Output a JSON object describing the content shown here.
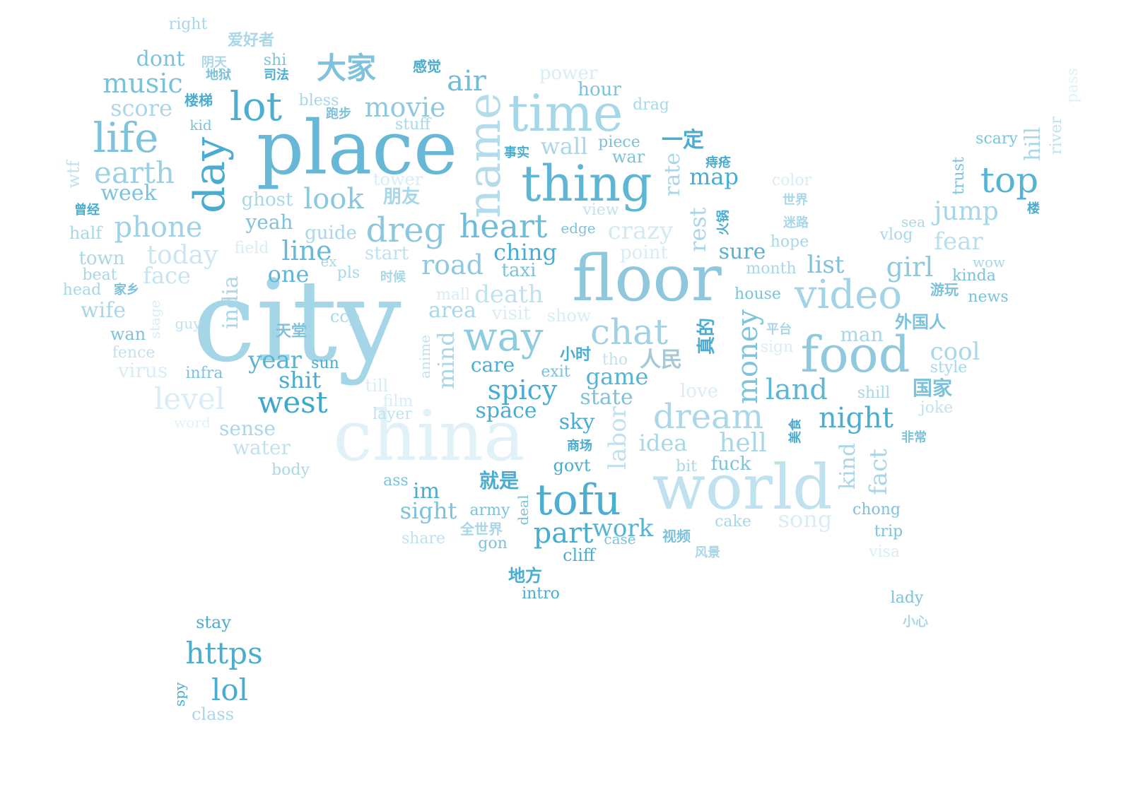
{
  "words": [
    {
      "text": "city",
      "color": "#a5d6e8"
    },
    {
      "text": "place",
      "color": "#66b8d6"
    },
    {
      "text": "floor",
      "color": "#8fc7dc"
    },
    {
      "text": "china",
      "color": "#e0f1f8"
    },
    {
      "text": "world",
      "color": "#c0e2ee"
    },
    {
      "text": "time",
      "color": "#a6d7e8"
    },
    {
      "text": "thing",
      "color": "#5fb6d4"
    },
    {
      "text": "name",
      "color": "#b5dcea"
    },
    {
      "text": "food",
      "color": "#8fc9dd"
    },
    {
      "text": "video",
      "color": "#a3d3e6"
    },
    {
      "text": "tofu",
      "color": "#4caed1"
    },
    {
      "text": "life",
      "color": "#7ec3dc"
    },
    {
      "text": "lot",
      "color": "#4daecf"
    },
    {
      "text": "day",
      "color": "#4aaccf"
    },
    {
      "text": "way",
      "color": "#8ccbe0"
    },
    {
      "text": "chat",
      "color": "#a0d1e4"
    },
    {
      "text": "dream",
      "color": "#a9d8e9"
    },
    {
      "text": "heart",
      "color": "#6fbcd8"
    },
    {
      "text": "dreg",
      "color": "#8bc8de"
    },
    {
      "text": "top",
      "color": "#57b3d3"
    },
    {
      "text": "大家",
      "color": "#7fc2dc"
    },
    {
      "text": "一定",
      "color": "#4aacd0"
    },
    {
      "text": "earth",
      "color": "#9cd0e3"
    },
    {
      "text": "music",
      "color": "#7bc1da"
    },
    {
      "text": "movie",
      "color": "#8ec9de"
    },
    {
      "text": "air",
      "color": "#71bdd8"
    },
    {
      "text": "score",
      "color": "#a9d7e8"
    },
    {
      "text": "phone",
      "color": "#a0d2e5"
    },
    {
      "text": "look",
      "color": "#8bc8dd"
    },
    {
      "text": "today",
      "color": "#cbe6f1"
    },
    {
      "text": "face",
      "color": "#c7e4f0"
    },
    {
      "text": "line",
      "color": "#68b9d6"
    },
    {
      "text": "one",
      "color": "#60b5d4"
    },
    {
      "text": "road",
      "color": "#8ec9de"
    },
    {
      "text": "crazy",
      "color": "#d3eaf3"
    },
    {
      "text": "jump",
      "color": "#a7d6e8"
    },
    {
      "text": "girl",
      "color": "#8ec9de"
    },
    {
      "text": "fear",
      "color": "#b9deec"
    },
    {
      "text": "cool",
      "color": "#a9d7e8"
    },
    {
      "text": "list",
      "color": "#7dc2db"
    },
    {
      "text": "money",
      "color": "#7fc3dc"
    },
    {
      "text": "level",
      "color": "#d8edf5"
    },
    {
      "text": "west",
      "color": "#3ea8cc"
    },
    {
      "text": "year",
      "color": "#59b3d3"
    },
    {
      "text": "shit",
      "color": "#48abcf"
    },
    {
      "text": "spicy",
      "color": "#4aadd0"
    },
    {
      "text": "game",
      "color": "#57b3d3"
    },
    {
      "text": "land",
      "color": "#5fb6d4"
    },
    {
      "text": "night",
      "color": "#4cadd0"
    },
    {
      "text": "hell",
      "color": "#a9d7e8"
    },
    {
      "text": "idea",
      "color": "#a9d7e8"
    },
    {
      "text": "labor",
      "color": "#c0e2ee"
    },
    {
      "text": "part",
      "color": "#4aadd0"
    },
    {
      "text": "work",
      "color": "#57b3d3"
    },
    {
      "text": "sight",
      "color": "#7dc2db"
    },
    {
      "text": "song",
      "color": "#d8edf5"
    },
    {
      "text": "fact",
      "color": "#a9d7e8"
    },
    {
      "text": "kind",
      "color": "#a9d7e8"
    },
    {
      "text": "mind",
      "color": "#a9d7e8"
    },
    {
      "text": "death",
      "color": "#c0e2ee"
    },
    {
      "text": "area",
      "color": "#a9d7e8"
    },
    {
      "text": "india",
      "color": "#a9d7e8"
    },
    {
      "text": "rest",
      "color": "#a9d7e8"
    },
    {
      "text": "rate",
      "color": "#a9d7e8"
    },
    {
      "text": "map",
      "color": "#4aadd0"
    },
    {
      "text": "sure",
      "color": "#57b3d3"
    },
    {
      "text": "wall",
      "color": "#a9d7e8"
    },
    {
      "text": "hour",
      "color": "#7dc2db"
    },
    {
      "text": "power",
      "color": "#d8edf5"
    },
    {
      "text": "wife",
      "color": "#a9d7e8"
    },
    {
      "text": "week",
      "color": "#7dc2db"
    },
    {
      "text": "town",
      "color": "#a9d7e8"
    },
    {
      "text": "half",
      "color": "#a9d7e8"
    },
    {
      "text": "wtf",
      "color": "#c0e2ee"
    },
    {
      "text": "dont",
      "color": "#7dc2db"
    },
    {
      "text": "right",
      "color": "#a9d7e8"
    },
    {
      "text": "shi",
      "color": "#7dc2db"
    },
    {
      "text": "bless",
      "color": "#a9d7e8"
    },
    {
      "text": "kid",
      "color": "#7dc2db"
    },
    {
      "text": "stuff",
      "color": "#a9d7e8"
    },
    {
      "text": "ghost",
      "color": "#a9d7e8"
    },
    {
      "text": "yeah",
      "color": "#7dc2db"
    },
    {
      "text": "guide",
      "color": "#a9d7e8"
    },
    {
      "text": "field",
      "color": "#d8edf5"
    },
    {
      "text": "start",
      "color": "#c0e2ee"
    },
    {
      "text": "tower",
      "color": "#d8edf5"
    },
    {
      "text": "ching",
      "color": "#4aadd0"
    },
    {
      "text": "taxi",
      "color": "#7dc2db"
    },
    {
      "text": "point",
      "color": "#d8edf5"
    },
    {
      "text": "edge",
      "color": "#7dc2db"
    },
    {
      "text": "view",
      "color": "#c0e2ee"
    },
    {
      "text": "piece",
      "color": "#7dc2db"
    },
    {
      "text": "war",
      "color": "#7dc2db"
    },
    {
      "text": "drag",
      "color": "#a9d7e8"
    },
    {
      "text": "color",
      "color": "#d8edf5"
    },
    {
      "text": "scary",
      "color": "#7dc2db"
    },
    {
      "text": "hill",
      "color": "#a9d7e8"
    },
    {
      "text": "river",
      "color": "#c0e2ee"
    },
    {
      "text": "pass",
      "color": "#e0f1f8"
    },
    {
      "text": "trust",
      "color": "#7dc2db"
    },
    {
      "text": "sea",
      "color": "#a9d7e8"
    },
    {
      "text": "vlog",
      "color": "#a9d7e8"
    },
    {
      "text": "hope",
      "color": "#a9d7e8"
    },
    {
      "text": "month",
      "color": "#a9d7e8"
    },
    {
      "text": "house",
      "color": "#7dc2db"
    },
    {
      "text": "wow",
      "color": "#a9d7e8"
    },
    {
      "text": "kinda",
      "color": "#7dc2db"
    },
    {
      "text": "news",
      "color": "#7dc2db"
    },
    {
      "text": "man",
      "color": "#a9d7e8"
    },
    {
      "text": "style",
      "color": "#a9d7e8"
    },
    {
      "text": "sign",
      "color": "#d8edf5"
    },
    {
      "text": "shill",
      "color": "#a9d7e8"
    },
    {
      "text": "joke",
      "color": "#c0e2ee"
    },
    {
      "text": "tho",
      "color": "#c0e2ee"
    },
    {
      "text": "exit",
      "color": "#7dc2db"
    },
    {
      "text": "care",
      "color": "#4aadd0"
    },
    {
      "text": "love",
      "color": "#d8edf5"
    },
    {
      "text": "state",
      "color": "#7dc2db"
    },
    {
      "text": "space",
      "color": "#4aadd0"
    },
    {
      "text": "sky",
      "color": "#4aadd0"
    },
    {
      "text": "govt",
      "color": "#4aadd0"
    },
    {
      "text": "bit",
      "color": "#a9d7e8"
    },
    {
      "text": "fuck",
      "color": "#7dc2db"
    },
    {
      "text": "show",
      "color": "#d8edf5"
    },
    {
      "text": "visit",
      "color": "#d8edf5"
    },
    {
      "text": "mall",
      "color": "#d8edf5"
    },
    {
      "text": "anime",
      "color": "#c0e2ee"
    },
    {
      "text": "till",
      "color": "#d8edf5"
    },
    {
      "text": "film",
      "color": "#d8edf5"
    },
    {
      "text": "layer",
      "color": "#c0e2ee"
    },
    {
      "text": "ccp",
      "color": "#a9d7e8"
    },
    {
      "text": "pls",
      "color": "#a9d7e8"
    },
    {
      "text": "ex",
      "color": "#a9d7e8"
    },
    {
      "text": "sun",
      "color": "#4aadd0"
    },
    {
      "text": "infra",
      "color": "#7dc2db"
    },
    {
      "text": "virus",
      "color": "#d8edf5"
    },
    {
      "text": "fence",
      "color": "#c0e2ee"
    },
    {
      "text": "wan",
      "color": "#7dc2db"
    },
    {
      "text": "stage",
      "color": "#d8edf5"
    },
    {
      "text": "guy",
      "color": "#c0e2ee"
    },
    {
      "text": "beat",
      "color": "#a9d7e8"
    },
    {
      "text": "head",
      "color": "#a9d7e8"
    },
    {
      "text": "word",
      "color": "#e0f1f8"
    },
    {
      "text": "sense",
      "color": "#a9d7e8"
    },
    {
      "text": "water",
      "color": "#c0e2ee"
    },
    {
      "text": "body",
      "color": "#a9d7e8"
    },
    {
      "text": "ass",
      "color": "#7dc2db"
    },
    {
      "text": "im",
      "color": "#4aadd0"
    },
    {
      "text": "army",
      "color": "#7dc2db"
    },
    {
      "text": "deal",
      "color": "#7dc2db"
    },
    {
      "text": "share",
      "color": "#c0e2ee"
    },
    {
      "text": "gon",
      "color": "#7dc2db"
    },
    {
      "text": "cliff",
      "color": "#4aadd0"
    },
    {
      "text": "case",
      "color": "#7dc2db"
    },
    {
      "text": "cake",
      "color": "#a9d7e8"
    },
    {
      "text": "chong",
      "color": "#7dc2db"
    },
    {
      "text": "trip",
      "color": "#7dc2db"
    },
    {
      "text": "visa",
      "color": "#d8edf5"
    },
    {
      "text": "intro",
      "color": "#4aadd0"
    },
    {
      "text": "lady",
      "color": "#7dc2db"
    },
    {
      "text": "stay",
      "color": "#4aadd0"
    },
    {
      "text": "https",
      "color": "#4aadd0"
    },
    {
      "text": "lol",
      "color": "#4aadd0"
    },
    {
      "text": "spy",
      "color": "#4aadd0"
    },
    {
      "text": "class",
      "color": "#a9d7e8"
    },
    {
      "text": "爱好者",
      "color": "#a9d7e8"
    },
    {
      "text": "阴天",
      "color": "#a9d7e8"
    },
    {
      "text": "地狱",
      "color": "#7dc2db"
    },
    {
      "text": "司法",
      "color": "#4aadd0"
    },
    {
      "text": "感觉",
      "color": "#4aadd0"
    },
    {
      "text": "楼梯",
      "color": "#4aadd0"
    },
    {
      "text": "跑步",
      "color": "#7dc2db"
    },
    {
      "text": "事实",
      "color": "#4aadd0"
    },
    {
      "text": "痔疮",
      "color": "#4aadd0"
    },
    {
      "text": "朋友",
      "color": "#a9d7e8"
    },
    {
      "text": "曾经",
      "color": "#4aadd0"
    },
    {
      "text": "火锅",
      "color": "#4aadd0"
    },
    {
      "text": "世界",
      "color": "#a9d7e8"
    },
    {
      "text": "迷路",
      "color": "#a9d7e8"
    },
    {
      "text": "楼",
      "color": "#4aadd0"
    },
    {
      "text": "时候",
      "color": "#a9d7e8"
    },
    {
      "text": "家乡",
      "color": "#7dc2db"
    },
    {
      "text": "游玩",
      "color": "#7dc2db"
    },
    {
      "text": "外国人",
      "color": "#7dc2db"
    },
    {
      "text": "真的",
      "color": "#4aadd0"
    },
    {
      "text": "平台",
      "color": "#a9d7e8"
    },
    {
      "text": "天堂",
      "color": "#7dc2db"
    },
    {
      "text": "小时",
      "color": "#4aadd0"
    },
    {
      "text": "人民",
      "color": "#a8c8d6"
    },
    {
      "text": "国家",
      "color": "#7dc2db"
    },
    {
      "text": "美食",
      "color": "#4aadd0"
    },
    {
      "text": "非常",
      "color": "#7dc2db"
    },
    {
      "text": "商场",
      "color": "#4aadd0"
    },
    {
      "text": "就是",
      "color": "#4aadd0"
    },
    {
      "text": "全世界",
      "color": "#a9d7e8"
    },
    {
      "text": "视频",
      "color": "#7dc2db"
    },
    {
      "text": "风景",
      "color": "#a9d7e8"
    },
    {
      "text": "地方",
      "color": "#4aadd0"
    },
    {
      "text": "小心",
      "color": "#a9d7e8"
    }
  ]
}
